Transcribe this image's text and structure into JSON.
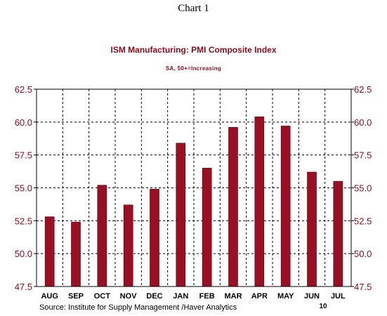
{
  "header": {
    "chart_label": "Chart 1"
  },
  "footer": {
    "source": "Source:  Institute for Supply Management /Haver Analytics"
  },
  "colors": {
    "bar": "#9b0f24",
    "title": "#8b0a1a",
    "axis_text": "#8b0a1a"
  },
  "chart_data": {
    "type": "bar",
    "title": "ISM Manufacturing: PMI Composite Index",
    "subtitle": "SA, 50+=Increasing",
    "xlabel": "",
    "ylabel": "",
    "categories": [
      "AUG",
      "SEP",
      "OCT",
      "NOV",
      "DEC",
      "JAN",
      "FEB",
      "MAR",
      "APR",
      "MAY",
      "JUN",
      "JUL"
    ],
    "year_label": "10",
    "year_label_under": "JUN",
    "values": [
      52.8,
      52.4,
      55.2,
      53.7,
      54.9,
      58.4,
      56.5,
      59.6,
      60.4,
      59.7,
      56.2,
      55.5
    ],
    "ylim": [
      47.5,
      62.5
    ],
    "yticks": [
      "47.5",
      "50.0",
      "52.5",
      "55.0",
      "57.5",
      "60.0",
      "62.5"
    ],
    "ytick_values": [
      47.5,
      50.0,
      52.5,
      55.0,
      57.5,
      60.0,
      62.5
    ],
    "grid": true,
    "grid_style": "dashed",
    "dual_y_axis": true
  }
}
